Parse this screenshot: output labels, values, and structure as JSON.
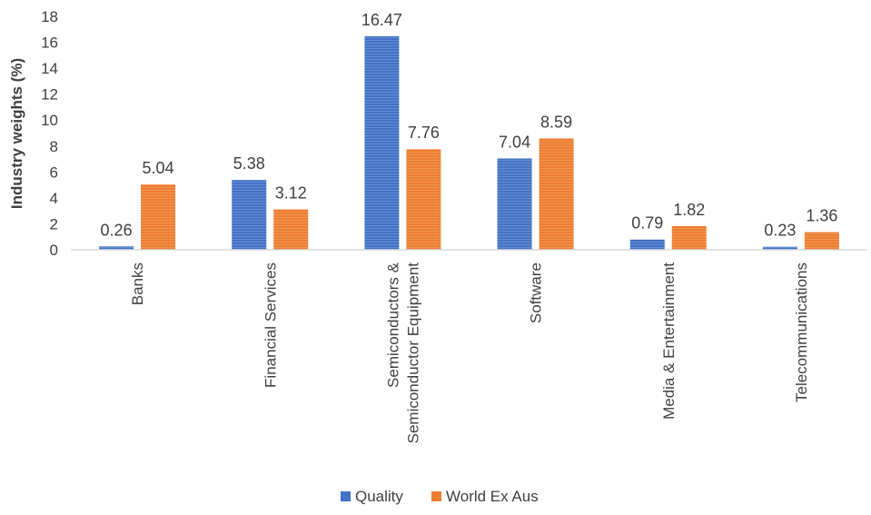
{
  "chart_data": {
    "type": "bar",
    "title": "",
    "xlabel": "",
    "ylabel": "Industry weights (%)",
    "ylim": [
      0,
      18
    ],
    "yticks": [
      0,
      2,
      4,
      6,
      8,
      10,
      12,
      14,
      16,
      18
    ],
    "grid": false,
    "legend_position": "bottom",
    "categories": [
      [
        "Banks"
      ],
      [
        "Financial Services"
      ],
      [
        "Semiconductors &",
        "Semiconductor Equipment"
      ],
      [
        "Software"
      ],
      [
        "Media & Entertainment"
      ],
      [
        "Telecommunications"
      ]
    ],
    "series": [
      {
        "name": "Quality",
        "color": "#4472C4",
        "values": [
          0.26,
          5.38,
          16.47,
          7.04,
          0.79,
          0.23
        ],
        "labels": [
          "0.26",
          "5.38",
          "16.47",
          "7.04",
          "0.79",
          "0.23"
        ]
      },
      {
        "name": "World Ex Aus",
        "color": "#ED7D31",
        "values": [
          5.04,
          3.12,
          7.76,
          8.59,
          1.82,
          1.36
        ],
        "labels": [
          "5.04",
          "3.12",
          "7.76",
          "8.59",
          "1.82",
          "1.36"
        ]
      }
    ]
  }
}
